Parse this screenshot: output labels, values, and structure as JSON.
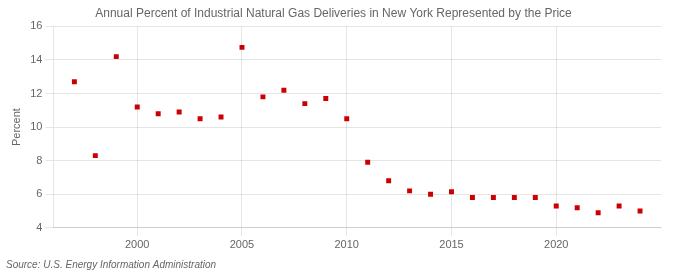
{
  "chart_data": {
    "type": "scatter",
    "title": "Annual Percent of Industrial Natural Gas Deliveries in New York Represented by the Price",
    "ylabel": "Percent",
    "source": "Source: U.S. Energy Information Administration",
    "color": "#cc0000",
    "marker": "square",
    "x": [
      1997,
      1998,
      1999,
      2000,
      2001,
      2002,
      2003,
      2004,
      2005,
      2006,
      2007,
      2008,
      2009,
      2010,
      2011,
      2012,
      2013,
      2014,
      2015,
      2016,
      2017,
      2018,
      2019,
      2020,
      2021,
      2022,
      2023,
      2024
    ],
    "values": [
      12.7,
      8.3,
      14.2,
      11.2,
      10.8,
      10.9,
      10.5,
      10.6,
      14.75,
      11.8,
      12.2,
      11.4,
      11.7,
      10.5,
      7.9,
      6.8,
      6.2,
      6.0,
      6.15,
      5.8,
      5.8,
      5.8,
      5.8,
      5.3,
      5.2,
      4.9,
      5.3,
      5.0
    ],
    "xlim": [
      1996,
      2025
    ],
    "xticks": [
      2000,
      2005,
      2010,
      2015,
      2020
    ],
    "ylim": [
      4,
      16
    ],
    "yticks": [
      4,
      6,
      8,
      10,
      12,
      14,
      16
    ],
    "grid": true
  }
}
